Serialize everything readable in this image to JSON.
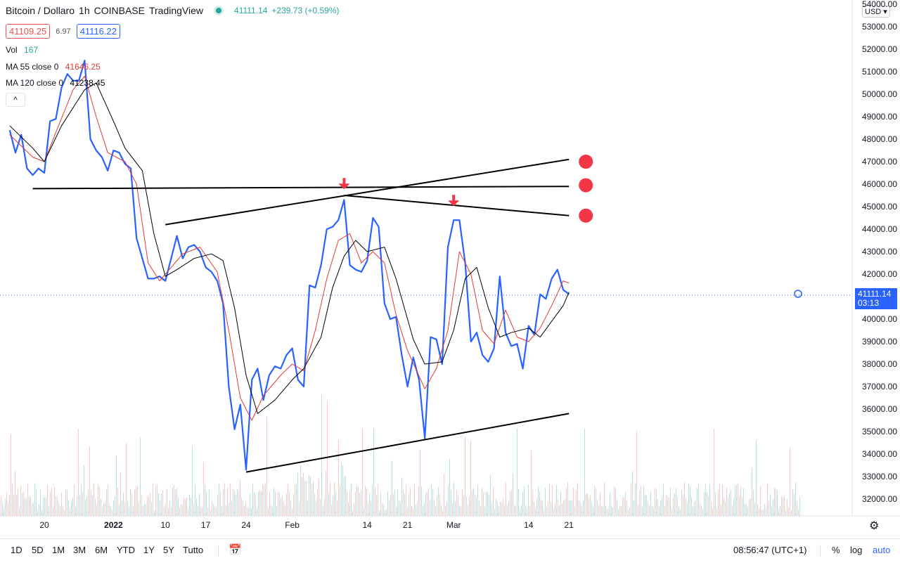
{
  "header": {
    "symbol": "Bitcoin / Dollaro",
    "interval": "1h",
    "exchange": "COINBASE",
    "platform": "TradingView",
    "last": "41111.14",
    "change": "+239.73 (+0.59%)",
    "bid": "41109.25",
    "spread": "6.97",
    "ask": "41116.22",
    "live_color": "#26a69a"
  },
  "indicators": {
    "vol_label": "Vol",
    "vol_value": "167",
    "ma55_label": "MA 55 close 0",
    "ma55_value": "41646.25",
    "ma120_label": "MA 120 close 0",
    "ma120_value": "41238.45",
    "collapse_icon": "^"
  },
  "price_scale": {
    "currency": "USD",
    "current_price": "41111.14",
    "countdown": "03:13",
    "ticks": [
      "54000.00",
      "53000.00",
      "52000.00",
      "51000.00",
      "50000.00",
      "49000.00",
      "48000.00",
      "47000.00",
      "46000.00",
      "45000.00",
      "44000.00",
      "43000.00",
      "42000.00",
      "41000.00",
      "40000.00",
      "39000.00",
      "38000.00",
      "37000.00",
      "36000.00",
      "35000.00",
      "34000.00",
      "33000.00",
      "32000.00"
    ]
  },
  "time_scale": {
    "ticks": [
      "20",
      "2022",
      "10",
      "17",
      "24",
      "Feb",
      "14",
      "21",
      "Mar",
      "14",
      "21"
    ]
  },
  "bottom_bar": {
    "timeframes": [
      "1D",
      "5D",
      "1M",
      "3M",
      "6M",
      "YTD",
      "1Y",
      "5Y",
      "Tutto"
    ],
    "clock": "08:56:47 (UTC+1)",
    "percent": "%",
    "log": "log",
    "auto": "auto"
  },
  "colors": {
    "price": "#2962ff",
    "ma55": "#e53935",
    "ma120": "#000000",
    "trendline": "#000000",
    "marker": "#f23645",
    "vol_up": "#26a69a",
    "vol_down": "#ef5350"
  },
  "chart_data": {
    "type": "line",
    "xlabel": "",
    "ylabel": "",
    "ylim": [
      31500,
      54000
    ],
    "x_range": [
      "2021-12-14",
      "2022-03-21"
    ],
    "series": [
      {
        "name": "Bitcoin / Dollaro",
        "points": [
          [
            "2021-12-14",
            48400
          ],
          [
            "2021-12-15",
            47400
          ],
          [
            "2021-12-16",
            48200
          ],
          [
            "2021-12-17",
            46700
          ],
          [
            "2021-12-18",
            46400
          ],
          [
            "2021-12-19",
            46700
          ],
          [
            "2021-12-20",
            46500
          ],
          [
            "2021-12-21",
            48800
          ],
          [
            "2021-12-22",
            48900
          ],
          [
            "2021-12-23",
            50300
          ],
          [
            "2021-12-24",
            50900
          ],
          [
            "2021-12-25",
            50600
          ],
          [
            "2021-12-26",
            50600
          ],
          [
            "2021-12-27",
            51500
          ],
          [
            "2021-12-28",
            48000
          ],
          [
            "2021-12-29",
            47500
          ],
          [
            "2021-12-30",
            47200
          ],
          [
            "2021-12-31",
            46600
          ],
          [
            "2022-01-01",
            47500
          ],
          [
            "2022-01-02",
            47400
          ],
          [
            "2022-01-03",
            46900
          ],
          [
            "2022-01-04",
            46700
          ],
          [
            "2022-01-05",
            43600
          ],
          [
            "2022-01-06",
            42700
          ],
          [
            "2022-01-07",
            41800
          ],
          [
            "2022-01-08",
            41800
          ],
          [
            "2022-01-09",
            41900
          ],
          [
            "2022-01-10",
            41700
          ],
          [
            "2022-01-11",
            42700
          ],
          [
            "2022-01-12",
            43700
          ],
          [
            "2022-01-13",
            42700
          ],
          [
            "2022-01-14",
            43200
          ],
          [
            "2022-01-15",
            43300
          ],
          [
            "2022-01-16",
            43000
          ],
          [
            "2022-01-17",
            42300
          ],
          [
            "2022-01-18",
            42100
          ],
          [
            "2022-01-19",
            41700
          ],
          [
            "2022-01-20",
            40700
          ],
          [
            "2022-01-21",
            37000
          ],
          [
            "2022-01-22",
            35100
          ],
          [
            "2022-01-23",
            36200
          ],
          [
            "2022-01-24",
            33300
          ],
          [
            "2022-01-25",
            37300
          ],
          [
            "2022-01-26",
            37800
          ],
          [
            "2022-01-27",
            36400
          ],
          [
            "2022-01-28",
            37500
          ],
          [
            "2022-01-29",
            37900
          ],
          [
            "2022-01-30",
            37800
          ],
          [
            "2022-01-31",
            38400
          ],
          [
            "2022-02-01",
            38700
          ],
          [
            "2022-02-02",
            37300
          ],
          [
            "2022-02-03",
            37000
          ],
          [
            "2022-02-04",
            41500
          ],
          [
            "2022-02-05",
            41400
          ],
          [
            "2022-02-06",
            42400
          ],
          [
            "2022-02-07",
            44000
          ],
          [
            "2022-02-08",
            44100
          ],
          [
            "2022-02-09",
            44400
          ],
          [
            "2022-02-10",
            45300
          ],
          [
            "2022-02-11",
            42400
          ],
          [
            "2022-02-12",
            42200
          ],
          [
            "2022-02-13",
            42100
          ],
          [
            "2022-02-14",
            42600
          ],
          [
            "2022-02-15",
            44500
          ],
          [
            "2022-02-16",
            44100
          ],
          [
            "2022-02-17",
            40700
          ],
          [
            "2022-02-18",
            40000
          ],
          [
            "2022-02-19",
            40100
          ],
          [
            "2022-02-20",
            38400
          ],
          [
            "2022-02-21",
            37000
          ],
          [
            "2022-02-22",
            38300
          ],
          [
            "2022-02-23",
            37300
          ],
          [
            "2022-02-24",
            34700
          ],
          [
            "2022-02-25",
            39200
          ],
          [
            "2022-02-26",
            39100
          ],
          [
            "2022-02-27",
            38000
          ],
          [
            "2022-02-28",
            43200
          ],
          [
            "2022-03-01",
            44400
          ],
          [
            "2022-03-02",
            44400
          ],
          [
            "2022-03-03",
            42500
          ],
          [
            "2022-03-04",
            39000
          ],
          [
            "2022-03-05",
            39400
          ],
          [
            "2022-03-06",
            38400
          ],
          [
            "2022-03-07",
            38100
          ],
          [
            "2022-03-08",
            38700
          ],
          [
            "2022-03-09",
            41900
          ],
          [
            "2022-03-10",
            39400
          ],
          [
            "2022-03-11",
            38800
          ],
          [
            "2022-03-12",
            38900
          ],
          [
            "2022-03-13",
            37800
          ],
          [
            "2022-03-14",
            39700
          ],
          [
            "2022-03-15",
            39300
          ],
          [
            "2022-03-16",
            41100
          ],
          [
            "2022-03-17",
            40900
          ],
          [
            "2022-03-18",
            41800
          ],
          [
            "2022-03-19",
            42200
          ],
          [
            "2022-03-20",
            41300
          ],
          [
            "2022-03-21",
            41111
          ]
        ]
      },
      {
        "name": "MA 55 close 0",
        "points": [
          [
            "2021-12-14",
            48200
          ],
          [
            "2021-12-18",
            47200
          ],
          [
            "2021-12-20",
            47000
          ],
          [
            "2021-12-22",
            48300
          ],
          [
            "2021-12-25",
            50200
          ],
          [
            "2021-12-27",
            50800
          ],
          [
            "2021-12-29",
            49000
          ],
          [
            "2021-12-31",
            47400
          ],
          [
            "2022-01-03",
            47000
          ],
          [
            "2022-01-05",
            46000
          ],
          [
            "2022-01-07",
            42500
          ],
          [
            "2022-01-09",
            41700
          ],
          [
            "2022-01-11",
            42300
          ],
          [
            "2022-01-13",
            42900
          ],
          [
            "2022-01-16",
            43200
          ],
          [
            "2022-01-19",
            42100
          ],
          [
            "2022-01-21",
            39500
          ],
          [
            "2022-01-23",
            36500
          ],
          [
            "2022-01-25",
            35500
          ],
          [
            "2022-01-27",
            36600
          ],
          [
            "2022-01-30",
            37500
          ],
          [
            "2022-02-01",
            38000
          ],
          [
            "2022-02-03",
            37700
          ],
          [
            "2022-02-05",
            39500
          ],
          [
            "2022-02-07",
            41800
          ],
          [
            "2022-02-09",
            43500
          ],
          [
            "2022-02-11",
            43800
          ],
          [
            "2022-02-13",
            42500
          ],
          [
            "2022-02-15",
            43000
          ],
          [
            "2022-02-17",
            42500
          ],
          [
            "2022-02-19",
            40200
          ],
          [
            "2022-02-21",
            38600
          ],
          [
            "2022-02-24",
            36900
          ],
          [
            "2022-02-26",
            37800
          ],
          [
            "2022-02-28",
            39500
          ],
          [
            "2022-03-02",
            43000
          ],
          [
            "2022-03-04",
            42000
          ],
          [
            "2022-03-06",
            39500
          ],
          [
            "2022-03-08",
            38900
          ],
          [
            "2022-03-10",
            40400
          ],
          [
            "2022-03-12",
            39200
          ],
          [
            "2022-03-14",
            39000
          ],
          [
            "2022-03-16",
            39600
          ],
          [
            "2022-03-18",
            40600
          ],
          [
            "2022-03-20",
            41700
          ],
          [
            "2022-03-21",
            41600
          ]
        ]
      },
      {
        "name": "MA 120 close 0",
        "points": [
          [
            "2021-12-14",
            48600
          ],
          [
            "2021-12-18",
            47600
          ],
          [
            "2021-12-20",
            47000
          ],
          [
            "2021-12-23",
            48600
          ],
          [
            "2021-12-27",
            50200
          ],
          [
            "2021-12-29",
            50500
          ],
          [
            "2022-01-01",
            48800
          ],
          [
            "2022-01-03",
            47600
          ],
          [
            "2022-01-06",
            46600
          ],
          [
            "2022-01-08",
            43800
          ],
          [
            "2022-01-10",
            41900
          ],
          [
            "2022-01-12",
            42200
          ],
          [
            "2022-01-15",
            42700
          ],
          [
            "2022-01-18",
            42900
          ],
          [
            "2022-01-20",
            42600
          ],
          [
            "2022-01-22",
            40500
          ],
          [
            "2022-01-24",
            37500
          ],
          [
            "2022-01-26",
            35800
          ],
          [
            "2022-01-29",
            36400
          ],
          [
            "2022-02-01",
            37300
          ],
          [
            "2022-02-03",
            37800
          ],
          [
            "2022-02-06",
            39200
          ],
          [
            "2022-02-08",
            41400
          ],
          [
            "2022-02-10",
            42800
          ],
          [
            "2022-02-12",
            43500
          ],
          [
            "2022-02-14",
            43000
          ],
          [
            "2022-02-17",
            43200
          ],
          [
            "2022-02-19",
            41800
          ],
          [
            "2022-02-22",
            39100
          ],
          [
            "2022-02-24",
            38000
          ],
          [
            "2022-02-27",
            38100
          ],
          [
            "2022-03-01",
            39500
          ],
          [
            "2022-03-03",
            41800
          ],
          [
            "2022-03-05",
            42300
          ],
          [
            "2022-03-07",
            40500
          ],
          [
            "2022-03-09",
            39200
          ],
          [
            "2022-03-11",
            39400
          ],
          [
            "2022-03-14",
            39600
          ],
          [
            "2022-03-16",
            39200
          ],
          [
            "2022-03-18",
            39900
          ],
          [
            "2022-03-20",
            40600
          ],
          [
            "2022-03-21",
            41200
          ]
        ]
      }
    ],
    "trendlines": [
      {
        "from": [
          "2021-12-18",
          45800
        ],
        "to": [
          "2022-03-21",
          45900
        ]
      },
      {
        "from": [
          "2022-01-10",
          44200
        ],
        "to": [
          "2022-03-21",
          47100
        ]
      },
      {
        "from": [
          "2022-02-10",
          45500
        ],
        "to": [
          "2022-03-21",
          44600
        ]
      },
      {
        "from": [
          "2022-01-24",
          33200
        ],
        "to": [
          "2022-03-21",
          35800
        ]
      }
    ],
    "markers": [
      {
        "kind": "arrow-down",
        "x": "2022-02-10",
        "y": 45900
      },
      {
        "kind": "arrow-down",
        "x": "2022-03-01",
        "y": 45150
      },
      {
        "kind": "dot",
        "x": "2022-03-21",
        "y": 47000
      },
      {
        "kind": "dot",
        "x": "2022-03-21",
        "y": 45950
      },
      {
        "kind": "dot",
        "x": "2022-03-21",
        "y": 44600
      }
    ]
  }
}
